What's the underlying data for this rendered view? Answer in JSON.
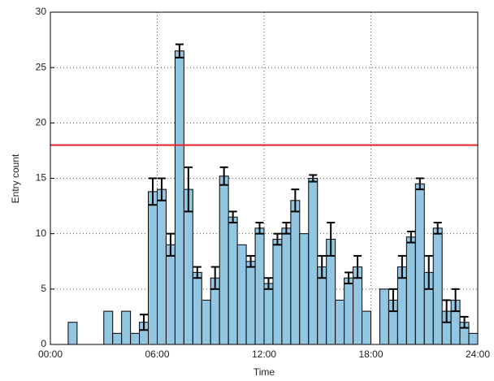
{
  "chart_data": {
    "type": "histogram",
    "xlabel": "Time",
    "ylabel": "Entry count",
    "bins": [
      0,
      0.5,
      1,
      1.5,
      2,
      2.5,
      3,
      3.5,
      4,
      4.5,
      5,
      5.5,
      6,
      6.5,
      7,
      7.5,
      8,
      8.5,
      9,
      9.5,
      10,
      10.5,
      11,
      11.5,
      12,
      12.5,
      13,
      13.5,
      14,
      14.5,
      15,
      15.5,
      16,
      16.5,
      17,
      17.5,
      18,
      18.5,
      19,
      19.5,
      20,
      20.5,
      21,
      21.5,
      22,
      22.5,
      23,
      23.5,
      24
    ],
    "values": [
      0,
      0,
      2,
      0,
      0,
      0,
      3,
      1,
      3,
      1,
      2,
      13.8,
      14,
      9,
      26.5,
      14,
      6.5,
      4,
      6,
      15.2,
      11.5,
      9,
      7.5,
      10.5,
      5.5,
      9.5,
      10.5,
      13,
      10,
      15,
      7,
      9.5,
      4,
      6,
      7,
      3,
      0,
      5,
      4,
      7,
      9.7,
      14.5,
      6.5,
      10.5,
      3,
      4,
      2,
      1
    ],
    "errors": [
      null,
      null,
      null,
      null,
      null,
      null,
      null,
      null,
      null,
      null,
      0.7,
      1.2,
      1,
      1,
      0.6,
      2,
      0.5,
      null,
      1,
      0.8,
      0.5,
      null,
      0.5,
      0.5,
      0.5,
      0.5,
      0.5,
      1,
      null,
      0.3,
      1,
      1.5,
      null,
      0.5,
      1,
      null,
      null,
      null,
      1,
      1,
      0.5,
      0.5,
      1.5,
      0.5,
      1,
      1,
      0.5,
      null
    ],
    "color": "#93c6e0",
    "threshold": 18,
    "threshold_color": "#ee2222",
    "xlim": [
      0,
      24
    ],
    "xticks": [
      {
        "value": 0,
        "label": "00:00"
      },
      {
        "value": 6,
        "label": "06:00"
      },
      {
        "value": 12,
        "label": "12:00"
      },
      {
        "value": 18,
        "label": "18:00"
      },
      {
        "value": 24,
        "label": "24:00"
      }
    ],
    "ylim": [
      0,
      30
    ],
    "yticks": [
      0,
      5,
      10,
      15,
      20,
      25,
      30
    ],
    "grid": true
  }
}
